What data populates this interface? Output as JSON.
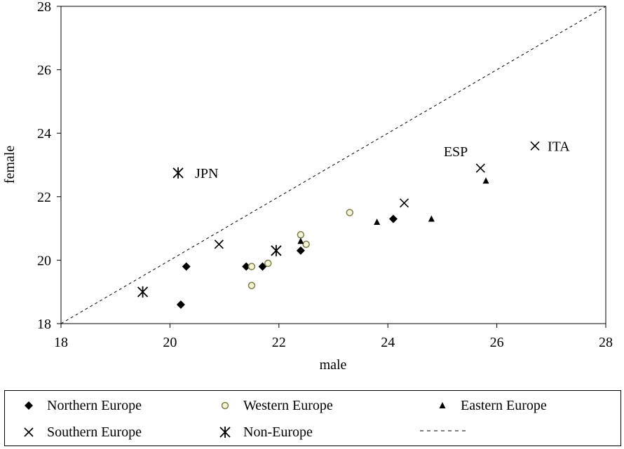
{
  "chart_data": {
    "type": "scatter",
    "xlabel": "male",
    "ylabel": "female",
    "xlim": [
      18,
      28
    ],
    "ylim": [
      18,
      28
    ],
    "xticks": [
      18,
      20,
      22,
      24,
      26,
      28
    ],
    "yticks": [
      18,
      20,
      22,
      24,
      26,
      28
    ],
    "grid": false,
    "legend_position": "bottom",
    "series": [
      {
        "name": "Northern Europe",
        "marker": "diamond",
        "color": "#000000",
        "points": [
          [
            20.2,
            18.6
          ],
          [
            20.3,
            19.8
          ],
          [
            21.4,
            19.8
          ],
          [
            21.7,
            19.8
          ],
          [
            22.4,
            20.3
          ],
          [
            24.1,
            21.3
          ]
        ]
      },
      {
        "name": "Western Europe",
        "marker": "circle-open",
        "color": "#8a8a4e",
        "points": [
          [
            21.5,
            19.8
          ],
          [
            21.5,
            19.2
          ],
          [
            21.8,
            19.9
          ],
          [
            22.4,
            20.8
          ],
          [
            22.5,
            20.5
          ],
          [
            23.3,
            21.5
          ]
        ]
      },
      {
        "name": "Eastern Europe",
        "marker": "triangle",
        "color": "#000000",
        "points": [
          [
            22.4,
            20.6
          ],
          [
            23.8,
            21.2
          ],
          [
            24.8,
            21.3
          ],
          [
            25.8,
            22.5
          ]
        ]
      },
      {
        "name": "Southern Europe",
        "marker": "x",
        "color": "#000000",
        "points": [
          [
            20.9,
            20.5
          ],
          [
            24.3,
            21.8
          ],
          [
            25.7,
            22.9
          ],
          [
            26.7,
            23.6
          ]
        ]
      },
      {
        "name": "Non-Europe",
        "marker": "asterisk",
        "color": "#000000",
        "points": [
          [
            19.5,
            19.0
          ],
          [
            21.95,
            20.3
          ],
          [
            20.15,
            22.75
          ]
        ]
      }
    ],
    "reference_line": {
      "type": "dashed",
      "from": [
        18,
        18
      ],
      "to": [
        28,
        28
      ]
    },
    "annotations": [
      {
        "text": "JPN",
        "x": 20.15,
        "y": 22.75
      },
      {
        "text": "ESP",
        "x": 25.7,
        "y": 22.9
      },
      {
        "text": "ITA",
        "x": 26.7,
        "y": 23.6
      }
    ]
  },
  "legend": {
    "items": [
      {
        "label": "Northern Europe",
        "marker": "diamond"
      },
      {
        "label": "Western Europe",
        "marker": "circle-open"
      },
      {
        "label": "Eastern Europe",
        "marker": "triangle"
      },
      {
        "label": "Southern Europe",
        "marker": "x"
      },
      {
        "label": "Non-Europe",
        "marker": "asterisk"
      },
      {
        "label": "",
        "marker": "dashed-line"
      }
    ]
  }
}
